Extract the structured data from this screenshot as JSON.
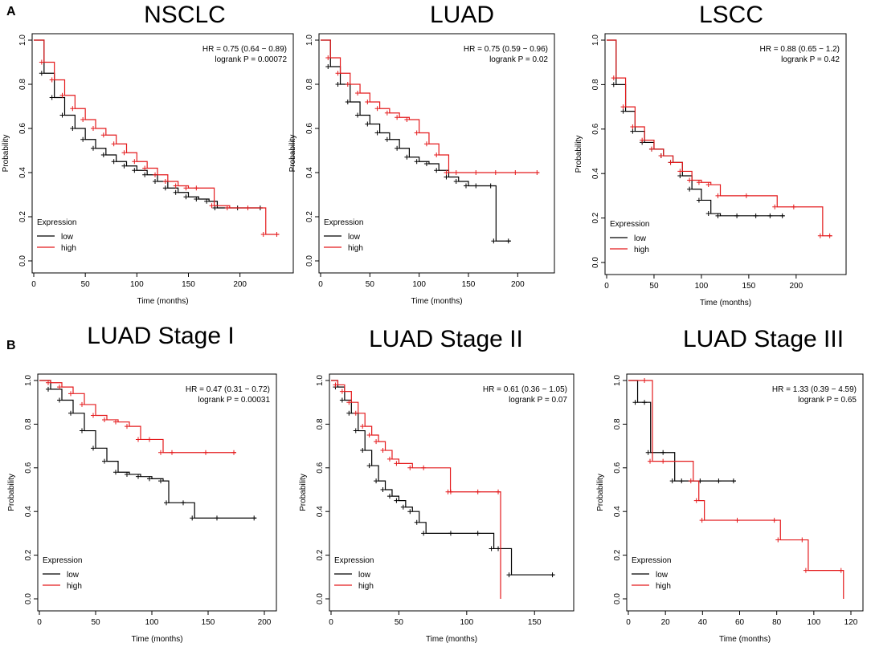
{
  "panel_labels": [
    "A",
    "B"
  ],
  "common": {
    "x_label": "Time (months)",
    "y_label": "Probability",
    "legend_title": "Expression",
    "low_label": "low",
    "high_label": "high",
    "colors": {
      "low": "#000000",
      "high": "#e41a1c"
    },
    "y_ticks": [
      "0.0",
      "0.2",
      "0.4",
      "0.6",
      "0.8",
      "1.0"
    ]
  },
  "chart_data": [
    {
      "type": "line",
      "title": "NSCLC",
      "hr_text": "HR = 0.75 (0.64 − 0.89)",
      "p_text": "logrank P = 0.00072",
      "x_ticks": [
        "0",
        "50",
        "100",
        "150",
        "200"
      ],
      "xlim": [
        0,
        240
      ],
      "ylim": [
        0,
        1
      ],
      "series": [
        {
          "name": "low",
          "x": [
            0,
            10,
            20,
            30,
            40,
            50,
            60,
            70,
            80,
            90,
            100,
            110,
            120,
            130,
            140,
            150,
            160,
            170,
            178,
            200,
            210,
            222
          ],
          "y": [
            1.0,
            0.85,
            0.74,
            0.66,
            0.6,
            0.55,
            0.51,
            0.48,
            0.45,
            0.43,
            0.41,
            0.39,
            0.36,
            0.33,
            0.31,
            0.29,
            0.28,
            0.27,
            0.24,
            0.24,
            0.24,
            0.24
          ]
        },
        {
          "name": "high",
          "x": [
            0,
            10,
            20,
            30,
            40,
            50,
            60,
            70,
            80,
            90,
            100,
            110,
            120,
            130,
            140,
            150,
            160,
            175,
            190,
            210,
            225,
            238
          ],
          "y": [
            1.0,
            0.9,
            0.82,
            0.75,
            0.69,
            0.64,
            0.6,
            0.57,
            0.53,
            0.49,
            0.45,
            0.42,
            0.39,
            0.36,
            0.34,
            0.33,
            0.33,
            0.25,
            0.24,
            0.24,
            0.12,
            0.12
          ]
        }
      ]
    },
    {
      "type": "line",
      "title": "LUAD",
      "hr_text": "HR = 0.75 (0.59 − 0.96)",
      "p_text": "logrank P = 0.02",
      "x_ticks": [
        "0",
        "50",
        "100",
        "150",
        "200"
      ],
      "xlim": [
        0,
        225
      ],
      "ylim": [
        0,
        1
      ],
      "series": [
        {
          "name": "low",
          "x": [
            0,
            10,
            20,
            30,
            40,
            50,
            60,
            70,
            80,
            90,
            100,
            110,
            120,
            130,
            140,
            150,
            160,
            175,
            178,
            193
          ],
          "y": [
            1.0,
            0.88,
            0.8,
            0.72,
            0.66,
            0.62,
            0.58,
            0.55,
            0.51,
            0.47,
            0.45,
            0.44,
            0.41,
            0.38,
            0.36,
            0.34,
            0.34,
            0.34,
            0.09,
            0.09
          ]
        },
        {
          "name": "high",
          "x": [
            0,
            10,
            20,
            30,
            40,
            50,
            60,
            70,
            80,
            90,
            100,
            110,
            120,
            130,
            140,
            160,
            180,
            200,
            222
          ],
          "y": [
            1.0,
            0.92,
            0.85,
            0.8,
            0.76,
            0.72,
            0.69,
            0.67,
            0.65,
            0.64,
            0.58,
            0.53,
            0.48,
            0.4,
            0.4,
            0.4,
            0.4,
            0.4,
            0.4
          ]
        }
      ]
    },
    {
      "type": "line",
      "title": "LSCC",
      "hr_text": "HR = 0.88 (0.65 − 1.2)",
      "p_text": "logrank P = 0.42",
      "x_ticks": [
        "0",
        "50",
        "100",
        "150",
        "200"
      ],
      "xlim": [
        0,
        240
      ],
      "ylim": [
        0,
        1
      ],
      "series": [
        {
          "name": "low",
          "x": [
            0,
            10,
            20,
            30,
            40,
            50,
            60,
            70,
            80,
            90,
            100,
            110,
            120,
            140,
            160,
            175,
            188
          ],
          "y": [
            1.0,
            0.8,
            0.68,
            0.59,
            0.54,
            0.51,
            0.48,
            0.45,
            0.39,
            0.33,
            0.28,
            0.22,
            0.21,
            0.21,
            0.21,
            0.21,
            0.21
          ]
        },
        {
          "name": "high",
          "x": [
            0,
            10,
            20,
            30,
            40,
            50,
            60,
            70,
            80,
            90,
            100,
            110,
            120,
            150,
            180,
            200,
            228,
            238
          ],
          "y": [
            1.0,
            0.83,
            0.7,
            0.61,
            0.55,
            0.51,
            0.48,
            0.45,
            0.41,
            0.37,
            0.36,
            0.35,
            0.3,
            0.3,
            0.25,
            0.25,
            0.12,
            0.12
          ]
        }
      ]
    },
    {
      "type": "line",
      "title": "LUAD Stage I",
      "hr_text": "HR = 0.47 (0.31 − 0.72)",
      "p_text": "logrank P = 0.00031",
      "x_ticks": [
        "0",
        "50",
        "100",
        "150",
        "200"
      ],
      "xlim": [
        0,
        200
      ],
      "ylim": [
        0,
        1
      ],
      "series": [
        {
          "name": "low",
          "x": [
            0,
            10,
            20,
            30,
            40,
            50,
            60,
            70,
            80,
            90,
            100,
            110,
            115,
            130,
            138,
            160,
            193
          ],
          "y": [
            1.0,
            0.96,
            0.91,
            0.85,
            0.77,
            0.69,
            0.63,
            0.58,
            0.57,
            0.56,
            0.55,
            0.54,
            0.44,
            0.44,
            0.37,
            0.37,
            0.37
          ]
        },
        {
          "name": "high",
          "x": [
            0,
            10,
            20,
            30,
            40,
            50,
            60,
            70,
            80,
            90,
            100,
            110,
            120,
            150,
            175
          ],
          "y": [
            1.0,
            0.99,
            0.97,
            0.94,
            0.89,
            0.84,
            0.82,
            0.81,
            0.79,
            0.73,
            0.73,
            0.67,
            0.67,
            0.67,
            0.67
          ]
        }
      ]
    },
    {
      "type": "line",
      "title": "LUAD Stage II",
      "hr_text": "HR = 0.61 (0.36 − 1.05)",
      "p_text": "logrank P = 0.07",
      "x_ticks": [
        "0",
        "50",
        "100",
        "150"
      ],
      "xlim": [
        0,
        170
      ],
      "ylim": [
        0,
        1
      ],
      "series": [
        {
          "name": "low",
          "x": [
            0,
            5,
            10,
            15,
            20,
            25,
            30,
            35,
            40,
            45,
            50,
            55,
            60,
            65,
            70,
            90,
            110,
            120,
            125,
            133,
            165
          ],
          "y": [
            1.0,
            0.97,
            0.91,
            0.85,
            0.77,
            0.68,
            0.61,
            0.54,
            0.5,
            0.47,
            0.45,
            0.42,
            0.4,
            0.35,
            0.3,
            0.3,
            0.3,
            0.23,
            0.23,
            0.11,
            0.11
          ]
        },
        {
          "name": "high",
          "x": [
            0,
            5,
            10,
            15,
            20,
            25,
            30,
            35,
            40,
            45,
            50,
            60,
            70,
            88,
            90,
            110,
            125,
            125
          ],
          "y": [
            1.0,
            0.98,
            0.95,
            0.9,
            0.85,
            0.79,
            0.75,
            0.72,
            0.68,
            0.64,
            0.62,
            0.6,
            0.6,
            0.49,
            0.49,
            0.49,
            0.49,
            0.0
          ]
        }
      ]
    },
    {
      "type": "line",
      "title": "LUAD Stage III",
      "hr_text": "HR = 1.33 (0.39 − 4.59)",
      "p_text": "logrank P = 0.65",
      "x_ticks": [
        "0",
        "20",
        "40",
        "60",
        "80",
        "100",
        "120"
      ],
      "xlim": [
        0,
        120
      ],
      "ylim": [
        0,
        1
      ],
      "series": [
        {
          "name": "low",
          "x": [
            0,
            5,
            10,
            12,
            20,
            25,
            30,
            40,
            50,
            58
          ],
          "y": [
            1.0,
            0.9,
            0.9,
            0.67,
            0.67,
            0.54,
            0.54,
            0.54,
            0.54,
            0.54
          ]
        },
        {
          "name": "high",
          "x": [
            0,
            10,
            13,
            20,
            35,
            38,
            41,
            60,
            80,
            82,
            95,
            97,
            116,
            116
          ],
          "y": [
            1.0,
            1.0,
            0.63,
            0.63,
            0.54,
            0.45,
            0.36,
            0.36,
            0.36,
            0.27,
            0.27,
            0.13,
            0.13,
            0.0
          ]
        }
      ]
    }
  ]
}
